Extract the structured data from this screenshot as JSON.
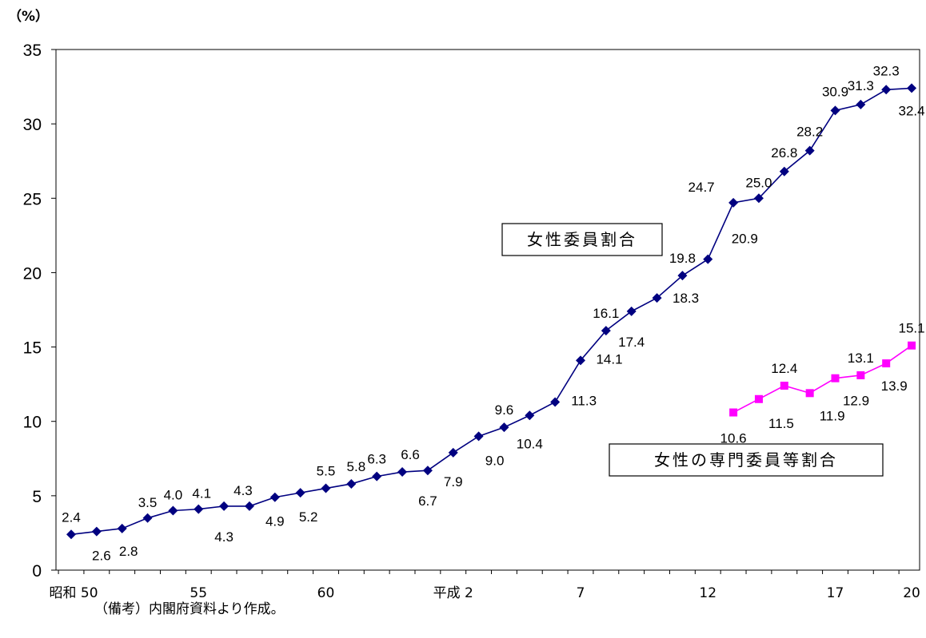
{
  "chart_data": {
    "type": "line",
    "ylabel": "（%）",
    "ylim": [
      0,
      35
    ],
    "yticks": [
      "0",
      "5",
      "10",
      "15",
      "20",
      "25",
      "30",
      "35"
    ],
    "x_tick_labels": [
      {
        "index": 0,
        "label": "昭和 50"
      },
      {
        "index": 5,
        "label": "55"
      },
      {
        "index": 10,
        "label": "60"
      },
      {
        "index": 15,
        "label": "平成 2"
      },
      {
        "index": 20,
        "label": "7"
      },
      {
        "index": 25,
        "label": "12"
      },
      {
        "index": 30,
        "label": "17"
      },
      {
        "index": 33,
        "label": "20"
      }
    ],
    "grid": false,
    "series": [
      {
        "name": "女性委員割合",
        "color": "#000080",
        "marker": "diamond",
        "start_index": 0,
        "values": [
          2.4,
          2.6,
          2.8,
          3.5,
          4.0,
          4.1,
          4.3,
          4.3,
          4.9,
          5.2,
          5.5,
          5.8,
          6.3,
          6.6,
          6.7,
          7.9,
          9.0,
          9.6,
          10.4,
          11.3,
          14.1,
          16.1,
          17.4,
          18.3,
          19.8,
          20.9,
          24.7,
          25.0,
          26.8,
          28.2,
          30.9,
          31.3,
          32.3,
          32.4
        ],
        "value_labels": [
          "2.4",
          "2.6",
          "2.8",
          "3.5",
          "4.0",
          "4.1",
          "4.3",
          "4.3",
          "4.9",
          "5.2",
          "5.5",
          "5.8",
          "6.3",
          "6.6",
          "6.7",
          "7.9",
          "9.0",
          "9.6",
          "10.4",
          "11.3",
          "14.1",
          "16.1",
          "17.4",
          "18.3",
          "19.8",
          "20.9",
          "24.7",
          "25.0",
          "26.8",
          "28.2",
          "30.9",
          "31.3",
          "32.3",
          "32.4"
        ]
      },
      {
        "name": "女性の専門委員等割合",
        "color": "#ff00ff",
        "marker": "square",
        "start_index": 26,
        "values": [
          10.6,
          11.5,
          12.4,
          11.9,
          12.9,
          13.1,
          13.9,
          15.1
        ],
        "value_labels": [
          "10.6",
          "11.5",
          "12.4",
          "11.9",
          "12.9",
          "13.1",
          "13.9",
          "15.1"
        ]
      }
    ]
  },
  "note": "（備考）内閣府資料より作成。"
}
